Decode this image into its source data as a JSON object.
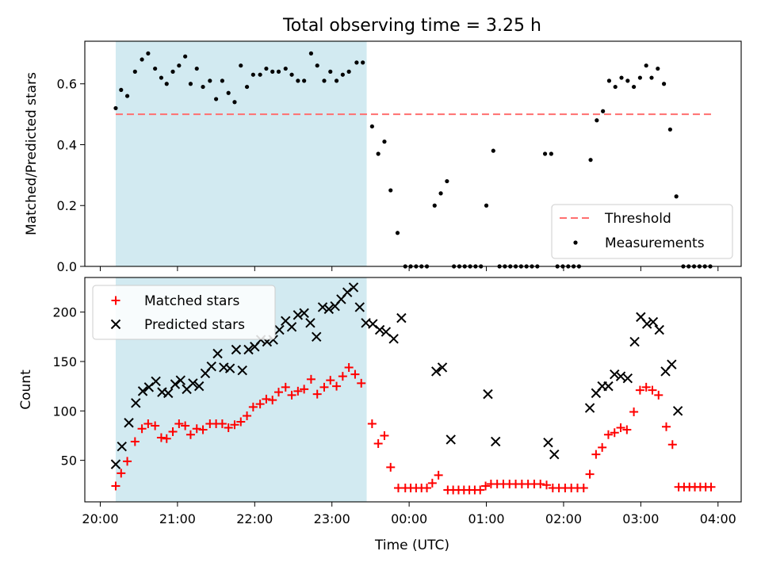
{
  "chart_data": {
    "type": "scatter",
    "title": "Total observing time = 3.25 h",
    "xlabel": "Time (UTC)",
    "x_unit": "hours since 20:00 UTC",
    "x_ticks": [
      {
        "value": 0,
        "label": "20:00"
      },
      {
        "value": 1,
        "label": "21:00"
      },
      {
        "value": 2,
        "label": "22:00"
      },
      {
        "value": 3,
        "label": "23:00"
      },
      {
        "value": 4,
        "label": "00:00"
      },
      {
        "value": 5,
        "label": "01:00"
      },
      {
        "value": 6,
        "label": "02:00"
      },
      {
        "value": 7,
        "label": "03:00"
      },
      {
        "value": 8,
        "label": "04:00"
      }
    ],
    "xlim": [
      -0.2,
      8.3
    ],
    "shaded_span": {
      "from": 0.2,
      "to": 3.45,
      "color": "#add8e6"
    },
    "top_panel": {
      "ylabel": "Matched/Predicted stars",
      "ylim": [
        0,
        0.74
      ],
      "y_ticks": [
        {
          "value": 0.0,
          "label": "0.0"
        },
        {
          "value": 0.2,
          "label": "0.2"
        },
        {
          "value": 0.4,
          "label": "0.4"
        },
        {
          "value": 0.6,
          "label": "0.6"
        }
      ],
      "legend_position": "lower-right",
      "threshold": {
        "name": "Threshold",
        "value": 0.5,
        "from": 0.2,
        "to": 7.95,
        "color": "#ff6f6f",
        "style": "dashed"
      },
      "measurements": {
        "name": "Measurements",
        "color": "#000000",
        "points": [
          [
            0.2,
            0.52
          ],
          [
            0.27,
            0.58
          ],
          [
            0.35,
            0.56
          ],
          [
            0.45,
            0.64
          ],
          [
            0.54,
            0.68
          ],
          [
            0.62,
            0.7
          ],
          [
            0.71,
            0.65
          ],
          [
            0.79,
            0.62
          ],
          [
            0.86,
            0.6
          ],
          [
            0.94,
            0.64
          ],
          [
            1.02,
            0.66
          ],
          [
            1.1,
            0.69
          ],
          [
            1.17,
            0.6
          ],
          [
            1.25,
            0.65
          ],
          [
            1.33,
            0.59
          ],
          [
            1.42,
            0.61
          ],
          [
            1.5,
            0.55
          ],
          [
            1.58,
            0.61
          ],
          [
            1.66,
            0.57
          ],
          [
            1.74,
            0.54
          ],
          [
            1.82,
            0.66
          ],
          [
            1.9,
            0.59
          ],
          [
            1.98,
            0.63
          ],
          [
            2.07,
            0.63
          ],
          [
            2.15,
            0.65
          ],
          [
            2.23,
            0.64
          ],
          [
            2.31,
            0.64
          ],
          [
            2.4,
            0.65
          ],
          [
            2.48,
            0.63
          ],
          [
            2.56,
            0.61
          ],
          [
            2.64,
            0.61
          ],
          [
            2.73,
            0.7
          ],
          [
            2.81,
            0.66
          ],
          [
            2.9,
            0.61
          ],
          [
            2.98,
            0.64
          ],
          [
            3.06,
            0.61
          ],
          [
            3.14,
            0.63
          ],
          [
            3.22,
            0.64
          ],
          [
            3.32,
            0.67
          ],
          [
            3.4,
            0.67
          ],
          [
            3.52,
            0.46
          ],
          [
            3.6,
            0.37
          ],
          [
            3.68,
            0.41
          ],
          [
            3.76,
            0.25
          ],
          [
            3.85,
            0.11
          ],
          [
            3.95,
            0.0
          ],
          [
            4.02,
            0.0
          ],
          [
            4.09,
            0.0
          ],
          [
            4.16,
            0.0
          ],
          [
            4.23,
            0.0
          ],
          [
            4.33,
            0.2
          ],
          [
            4.41,
            0.24
          ],
          [
            4.49,
            0.28
          ],
          [
            4.58,
            0.0
          ],
          [
            4.65,
            0.0
          ],
          [
            4.72,
            0.0
          ],
          [
            4.79,
            0.0
          ],
          [
            4.86,
            0.0
          ],
          [
            4.93,
            0.0
          ],
          [
            5.0,
            0.2
          ],
          [
            5.09,
            0.38
          ],
          [
            5.17,
            0.0
          ],
          [
            5.24,
            0.0
          ],
          [
            5.31,
            0.0
          ],
          [
            5.38,
            0.0
          ],
          [
            5.45,
            0.0
          ],
          [
            5.52,
            0.0
          ],
          [
            5.59,
            0.0
          ],
          [
            5.66,
            0.0
          ],
          [
            5.76,
            0.37
          ],
          [
            5.84,
            0.37
          ],
          [
            5.92,
            0.0
          ],
          [
            5.99,
            0.0
          ],
          [
            6.06,
            0.0
          ],
          [
            6.13,
            0.0
          ],
          [
            6.2,
            0.0
          ],
          [
            6.35,
            0.35
          ],
          [
            6.43,
            0.48
          ],
          [
            6.51,
            0.51
          ],
          [
            6.59,
            0.61
          ],
          [
            6.67,
            0.59
          ],
          [
            6.75,
            0.62
          ],
          [
            6.83,
            0.61
          ],
          [
            6.91,
            0.59
          ],
          [
            6.99,
            0.62
          ],
          [
            7.07,
            0.66
          ],
          [
            7.14,
            0.62
          ],
          [
            7.22,
            0.65
          ],
          [
            7.3,
            0.6
          ],
          [
            7.38,
            0.45
          ],
          [
            7.46,
            0.23
          ],
          [
            7.55,
            0.0
          ],
          [
            7.62,
            0.0
          ],
          [
            7.69,
            0.0
          ],
          [
            7.76,
            0.0
          ],
          [
            7.83,
            0.0
          ],
          [
            7.9,
            0.0
          ]
        ]
      }
    },
    "bottom_panel": {
      "ylabel": "Count",
      "ylim": [
        8,
        235
      ],
      "y_ticks": [
        {
          "value": 50,
          "label": "50"
        },
        {
          "value": 100,
          "label": "100"
        },
        {
          "value": 150,
          "label": "150"
        },
        {
          "value": 200,
          "label": "200"
        }
      ],
      "legend_position": "upper-left",
      "series": [
        {
          "name": "Matched stars",
          "marker": "plus",
          "color": "#ff0000",
          "points": [
            [
              0.2,
              24
            ],
            [
              0.27,
              37
            ],
            [
              0.35,
              49
            ],
            [
              0.45,
              69
            ],
            [
              0.54,
              82
            ],
            [
              0.62,
              87
            ],
            [
              0.71,
              85
            ],
            [
              0.79,
              73
            ],
            [
              0.86,
              72
            ],
            [
              0.94,
              79
            ],
            [
              1.02,
              87
            ],
            [
              1.1,
              85
            ],
            [
              1.17,
              76
            ],
            [
              1.25,
              82
            ],
            [
              1.33,
              81
            ],
            [
              1.42,
              87
            ],
            [
              1.5,
              87
            ],
            [
              1.58,
              87
            ],
            [
              1.66,
              83
            ],
            [
              1.74,
              86
            ],
            [
              1.82,
              89
            ],
            [
              1.9,
              95
            ],
            [
              1.98,
              104
            ],
            [
              2.07,
              107
            ],
            [
              2.15,
              112
            ],
            [
              2.23,
              111
            ],
            [
              2.31,
              119
            ],
            [
              2.4,
              124
            ],
            [
              2.48,
              116
            ],
            [
              2.56,
              120
            ],
            [
              2.64,
              122
            ],
            [
              2.73,
              132
            ],
            [
              2.81,
              117
            ],
            [
              2.9,
              124
            ],
            [
              2.98,
              131
            ],
            [
              3.06,
              125
            ],
            [
              3.14,
              135
            ],
            [
              3.22,
              144
            ],
            [
              3.3,
              137
            ],
            [
              3.38,
              128
            ],
            [
              3.52,
              87
            ],
            [
              3.6,
              67
            ],
            [
              3.68,
              75
            ],
            [
              3.76,
              43
            ],
            [
              3.86,
              22
            ],
            [
              3.95,
              22
            ],
            [
              4.02,
              22
            ],
            [
              4.09,
              22
            ],
            [
              4.16,
              22
            ],
            [
              4.23,
              22
            ],
            [
              4.3,
              27
            ],
            [
              4.38,
              35
            ],
            [
              4.5,
              20
            ],
            [
              4.57,
              20
            ],
            [
              4.64,
              20
            ],
            [
              4.71,
              20
            ],
            [
              4.78,
              20
            ],
            [
              4.85,
              20
            ],
            [
              4.92,
              20
            ],
            [
              4.99,
              24
            ],
            [
              5.06,
              26
            ],
            [
              5.14,
              26
            ],
            [
              5.22,
              26
            ],
            [
              5.3,
              26
            ],
            [
              5.38,
              26
            ],
            [
              5.46,
              26
            ],
            [
              5.54,
              26
            ],
            [
              5.62,
              26
            ],
            [
              5.7,
              26
            ],
            [
              5.78,
              25
            ],
            [
              5.86,
              22
            ],
            [
              5.94,
              22
            ],
            [
              6.02,
              22
            ],
            [
              6.1,
              22
            ],
            [
              6.18,
              22
            ],
            [
              6.26,
              22
            ],
            [
              6.34,
              36
            ],
            [
              6.42,
              56
            ],
            [
              6.5,
              63
            ],
            [
              6.58,
              76
            ],
            [
              6.66,
              78
            ],
            [
              6.74,
              83
            ],
            [
              6.82,
              81
            ],
            [
              6.91,
              99
            ],
            [
              6.99,
              121
            ],
            [
              7.07,
              124
            ],
            [
              7.15,
              121
            ],
            [
              7.23,
              116
            ],
            [
              7.33,
              84
            ],
            [
              7.41,
              66
            ],
            [
              7.49,
              23
            ],
            [
              7.56,
              23
            ],
            [
              7.63,
              23
            ],
            [
              7.7,
              23
            ],
            [
              7.77,
              23
            ],
            [
              7.84,
              23
            ],
            [
              7.91,
              23
            ]
          ]
        },
        {
          "name": "Predicted stars",
          "marker": "cross",
          "color": "#000000",
          "points": [
            [
              0.2,
              46
            ],
            [
              0.28,
              64
            ],
            [
              0.37,
              88
            ],
            [
              0.46,
              108
            ],
            [
              0.55,
              120
            ],
            [
              0.63,
              124
            ],
            [
              0.72,
              130
            ],
            [
              0.8,
              119
            ],
            [
              0.88,
              118
            ],
            [
              0.97,
              127
            ],
            [
              1.04,
              131
            ],
            [
              1.12,
              122
            ],
            [
              1.2,
              128
            ],
            [
              1.28,
              125
            ],
            [
              1.36,
              138
            ],
            [
              1.44,
              145
            ],
            [
              1.52,
              158
            ],
            [
              1.6,
              144
            ],
            [
              1.68,
              143
            ],
            [
              1.76,
              162
            ],
            [
              1.84,
              141
            ],
            [
              1.92,
              162
            ],
            [
              2.0,
              165
            ],
            [
              2.08,
              172
            ],
            [
              2.16,
              170
            ],
            [
              2.24,
              172
            ],
            [
              2.32,
              182
            ],
            [
              2.4,
              191
            ],
            [
              2.48,
              185
            ],
            [
              2.56,
              197
            ],
            [
              2.64,
              199
            ],
            [
              2.72,
              189
            ],
            [
              2.8,
              175
            ],
            [
              2.88,
              205
            ],
            [
              2.96,
              203
            ],
            [
              3.04,
              206
            ],
            [
              3.12,
              213
            ],
            [
              3.2,
              220
            ],
            [
              3.28,
              225
            ],
            [
              3.36,
              205
            ],
            [
              3.44,
              189
            ],
            [
              3.53,
              188
            ],
            [
              3.62,
              182
            ],
            [
              3.7,
              180
            ],
            [
              3.8,
              173
            ],
            [
              3.9,
              194
            ],
            [
              4.35,
              140
            ],
            [
              4.43,
              144
            ],
            [
              4.54,
              71
            ],
            [
              5.02,
              117
            ],
            [
              5.12,
              69
            ],
            [
              5.8,
              68
            ],
            [
              5.88,
              56
            ],
            [
              6.34,
              103
            ],
            [
              6.42,
              118
            ],
            [
              6.5,
              125
            ],
            [
              6.58,
              125
            ],
            [
              6.66,
              137
            ],
            [
              6.74,
              135
            ],
            [
              6.83,
              133
            ],
            [
              6.92,
              170
            ],
            [
              7.0,
              195
            ],
            [
              7.08,
              188
            ],
            [
              7.16,
              190
            ],
            [
              7.24,
              182
            ],
            [
              7.32,
              140
            ],
            [
              7.4,
              147
            ],
            [
              7.48,
              100
            ]
          ]
        }
      ]
    }
  }
}
